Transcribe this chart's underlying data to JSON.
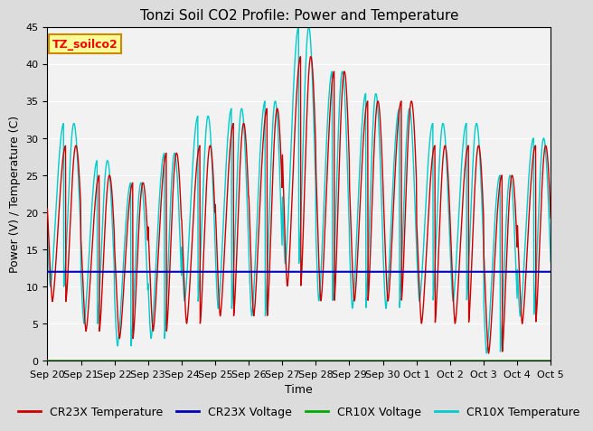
{
  "title": "Tonzi Soil CO2 Profile: Power and Temperature",
  "xlabel": "Time",
  "ylabel": "Power (V) / Temperature (C)",
  "annotation": "TZ_soilco2",
  "ylim": [
    0,
    45
  ],
  "xlim_start": 0,
  "xlim_end": 15,
  "bg_color": "#DCDCDC",
  "plot_bg_color": "#F2F2F2",
  "cr23x_temp_color": "#CC0000",
  "cr23x_volt_color": "#0000BB",
  "cr10x_volt_color": "#00AA00",
  "cr10x_temp_color": "#00CCCC",
  "cr23x_volt_value": 12.0,
  "cr10x_volt_value": 0.0,
  "tick_labels": [
    "Sep 20",
    "Sep 21",
    "Sep 22",
    "Sep 23",
    "Sep 24",
    "Sep 25",
    "Sep 26",
    "Sep 27",
    "Sep 28",
    "Sep 29",
    "Sep 30",
    "Oct 1",
    "Oct 2",
    "Oct 3",
    "Oct 4",
    "Oct 5"
  ],
  "legend_labels": [
    "CR23X Temperature",
    "CR23X Voltage",
    "CR10X Voltage",
    "CR10X Temperature"
  ],
  "title_fontsize": 11,
  "axis_label_fontsize": 9,
  "tick_fontsize": 8,
  "legend_fontsize": 9
}
